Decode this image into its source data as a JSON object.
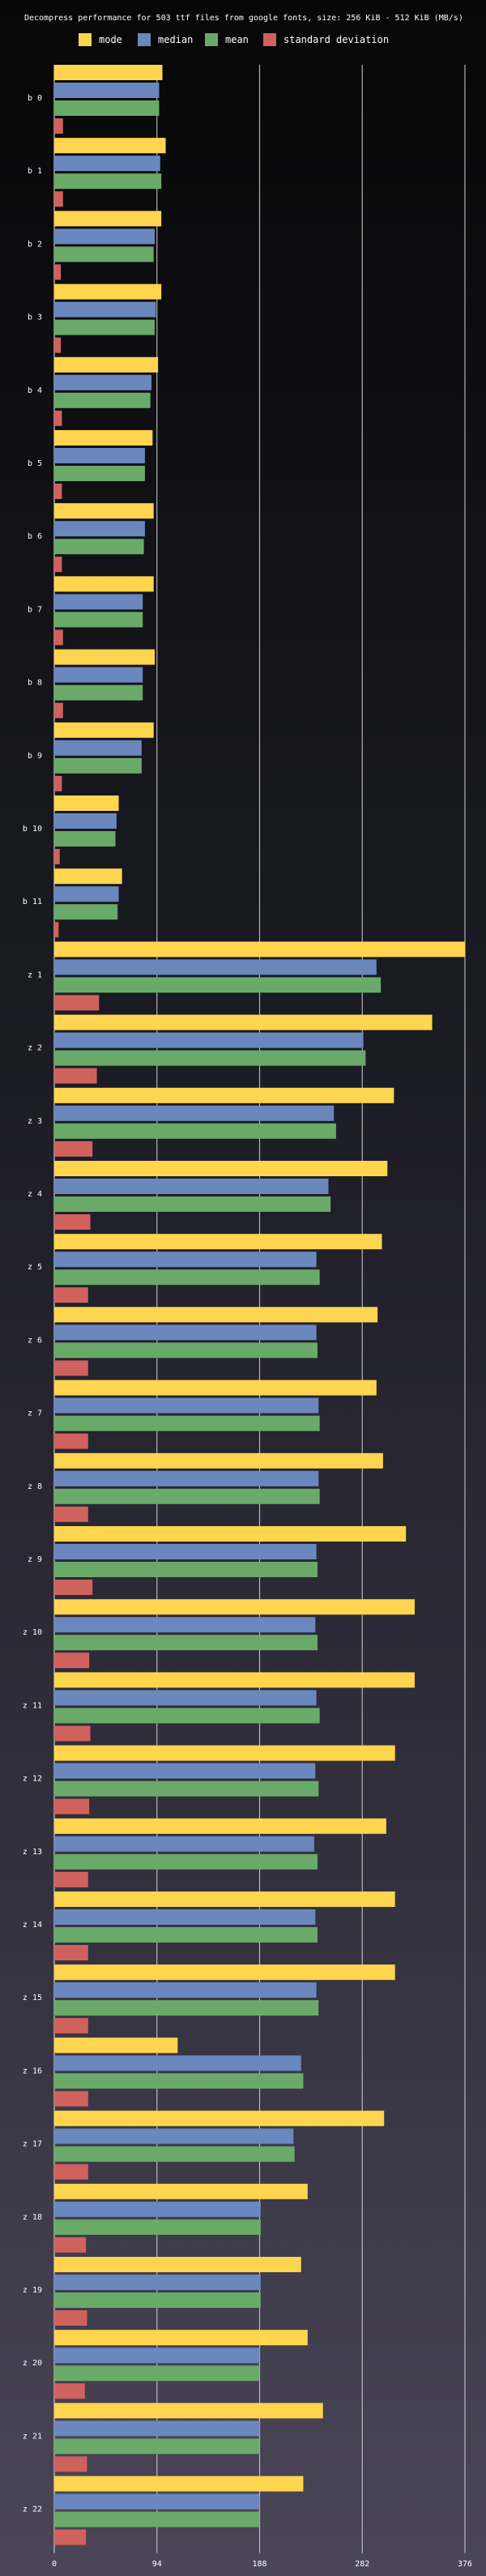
{
  "chart_data": {
    "type": "bar",
    "orientation": "horizontal",
    "title": "Decompress performance for 503 ttf files from google fonts, size: 256 KiB - 512 KiB (MB/s)",
    "xlim": [
      0,
      376
    ],
    "x_ticks": [
      "0",
      "94",
      "188",
      "282",
      "376"
    ],
    "grid": true,
    "legend_position": "top",
    "colors": {
      "mode": "#ffd54f",
      "median": "#6a87be",
      "mean": "#6aaa69",
      "standard deviation": "#d0625d",
      "grid": "#cfcfcf"
    },
    "categories": [
      "b 0",
      "b 1",
      "b 2",
      "b 3",
      "b 4",
      "b 5",
      "b 6",
      "b 7",
      "b 8",
      "b 9",
      "b 10",
      "b 11",
      "z 1",
      "z 2",
      "z 3",
      "z 4",
      "z 5",
      "z 6",
      "z 7",
      "z 8",
      "z 9",
      "z 10",
      "z 11",
      "z 12",
      "z 13",
      "z 14",
      "z 15",
      "z 16",
      "z 17",
      "z 18",
      "z 19",
      "z 20",
      "z 21",
      "z 22"
    ],
    "series": [
      {
        "name": "mode",
        "values": [
          99,
          102,
          98,
          98,
          95,
          90,
          91,
          91,
          92,
          91,
          59,
          62,
          376,
          346,
          311,
          305,
          300,
          296,
          295,
          301,
          322,
          330,
          330,
          312,
          304,
          312,
          312,
          113,
          302,
          232,
          226,
          232,
          246,
          228
        ]
      },
      {
        "name": "median",
        "values": [
          96,
          97,
          92,
          93,
          89,
          83,
          83,
          81,
          81,
          80,
          57,
          59,
          295,
          283,
          256,
          251,
          240,
          240,
          242,
          242,
          240,
          239,
          240,
          239,
          238,
          239,
          240,
          226,
          219,
          189,
          189,
          188,
          188,
          188
        ]
      },
      {
        "name": "mean",
        "values": [
          96,
          98,
          91,
          92,
          88,
          83,
          82,
          81,
          81,
          80,
          56,
          58,
          299,
          285,
          258,
          253,
          243,
          241,
          243,
          243,
          241,
          241,
          243,
          242,
          241,
          241,
          242,
          228,
          220,
          189,
          189,
          188,
          188,
          188
        ]
      },
      {
        "name": "standard deviation",
        "values": [
          8,
          8,
          6,
          6,
          7,
          7,
          7,
          8,
          8,
          7,
          5,
          4,
          41,
          39,
          35,
          33,
          31,
          31,
          31,
          31,
          35,
          32,
          33,
          32,
          31,
          31,
          31,
          31,
          31,
          29,
          30,
          28,
          30,
          29
        ]
      }
    ]
  }
}
